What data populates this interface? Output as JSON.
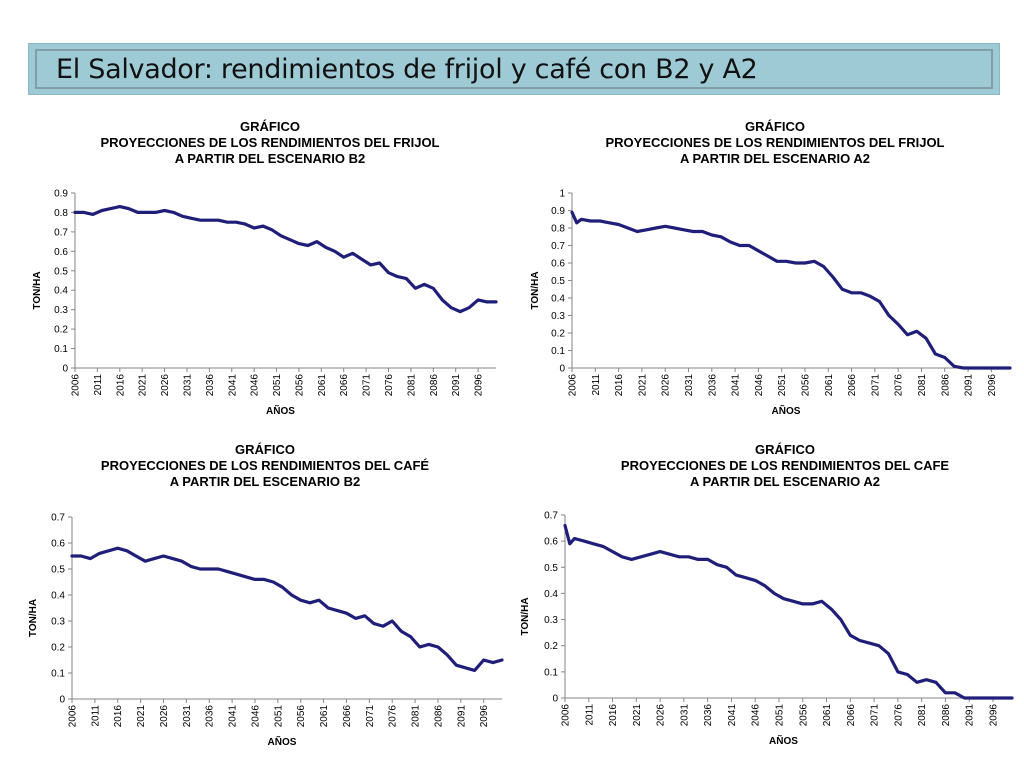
{
  "header": {
    "title": "El Salvador: rendimientos de frijol y café con B2 y A2",
    "band_color": "#9ecad6"
  },
  "series_color": "#1f1f7a",
  "chart_data": [
    {
      "type": "line",
      "title": [
        "GRÁFICO",
        "PROYECCIONES DE LOS RENDIMIENTOS DEL FRIJOL",
        "A PARTIR DEL ESCENARIO B2"
      ],
      "xlabel": "AÑOS",
      "ylabel": "TON/HA",
      "ylim": [
        0,
        0.9
      ],
      "yticks": [
        "0",
        "0.1",
        "0.2",
        "0.3",
        "0.4",
        "0.5",
        "0.6",
        "0.7",
        "0.8",
        "0.9"
      ],
      "xlim": [
        2006,
        2100
      ],
      "xticks": [
        "2006",
        "2011",
        "2016",
        "2021",
        "2026",
        "2031",
        "2036",
        "2041",
        "2046",
        "2051",
        "2056",
        "2061",
        "2066",
        "2071",
        "2076",
        "2081",
        "2086",
        "2091",
        "2096"
      ],
      "x": [
        2006,
        2008,
        2010,
        2012,
        2014,
        2016,
        2018,
        2020,
        2022,
        2024,
        2026,
        2028,
        2030,
        2032,
        2034,
        2036,
        2038,
        2040,
        2042,
        2044,
        2046,
        2048,
        2050,
        2052,
        2054,
        2056,
        2058,
        2060,
        2062,
        2064,
        2066,
        2068,
        2070,
        2072,
        2074,
        2076,
        2078,
        2080,
        2082,
        2084,
        2086,
        2088,
        2090,
        2092,
        2094,
        2096,
        2098,
        2100
      ],
      "y": [
        0.8,
        0.8,
        0.79,
        0.81,
        0.82,
        0.83,
        0.82,
        0.8,
        0.8,
        0.8,
        0.81,
        0.8,
        0.78,
        0.77,
        0.76,
        0.76,
        0.76,
        0.75,
        0.75,
        0.74,
        0.72,
        0.73,
        0.71,
        0.68,
        0.66,
        0.64,
        0.63,
        0.65,
        0.62,
        0.6,
        0.57,
        0.59,
        0.56,
        0.53,
        0.54,
        0.49,
        0.47,
        0.46,
        0.41,
        0.43,
        0.41,
        0.35,
        0.31,
        0.29,
        0.31,
        0.35,
        0.34,
        0.34
      ]
    },
    {
      "type": "line",
      "title": [
        "GRÁFICO",
        "PROYECCIONES DE LOS RENDIMIENTOS DEL FRIJOL",
        "A PARTIR DEL ESCENARIO A2"
      ],
      "xlabel": "AÑOS",
      "ylabel": "TON/HA",
      "ylim": [
        0,
        1
      ],
      "yticks": [
        "0",
        "0.1",
        "0.2",
        "0.3",
        "0.4",
        "0.5",
        "0.6",
        "0.7",
        "0.8",
        "0.9",
        "1"
      ],
      "xlim": [
        2006,
        2100
      ],
      "xticks": [
        "2006",
        "2011",
        "2016",
        "2021",
        "2026",
        "2031",
        "2036",
        "2041",
        "2046",
        "2051",
        "2056",
        "2061",
        "2066",
        "2071",
        "2076",
        "2081",
        "2086",
        "2091",
        "2096"
      ],
      "x": [
        2006,
        2007,
        2008,
        2010,
        2012,
        2014,
        2016,
        2018,
        2020,
        2022,
        2024,
        2026,
        2028,
        2030,
        2032,
        2034,
        2036,
        2038,
        2040,
        2042,
        2044,
        2046,
        2048,
        2050,
        2052,
        2054,
        2056,
        2058,
        2060,
        2062,
        2064,
        2066,
        2068,
        2070,
        2072,
        2074,
        2076,
        2078,
        2080,
        2082,
        2084,
        2086,
        2088,
        2090,
        2092,
        2094,
        2096,
        2098,
        2100
      ],
      "y": [
        0.89,
        0.83,
        0.85,
        0.84,
        0.84,
        0.83,
        0.82,
        0.8,
        0.78,
        0.79,
        0.8,
        0.81,
        0.8,
        0.79,
        0.78,
        0.78,
        0.76,
        0.75,
        0.72,
        0.7,
        0.7,
        0.67,
        0.64,
        0.61,
        0.61,
        0.6,
        0.6,
        0.61,
        0.58,
        0.52,
        0.45,
        0.43,
        0.43,
        0.41,
        0.38,
        0.3,
        0.25,
        0.19,
        0.21,
        0.17,
        0.08,
        0.06,
        0.01,
        0.0,
        0.0,
        0.0,
        0.0,
        0.0,
        0.0
      ]
    },
    {
      "type": "line",
      "title": [
        "GRÁFICO",
        "PROYECCIONES DE LOS RENDIMIENTOS DEL CAFÉ",
        "A PARTIR DEL ESCENARIO B2"
      ],
      "xlabel": "AÑOS",
      "ylabel": "TON/HA",
      "ylim": [
        0,
        0.7
      ],
      "yticks": [
        "0",
        "0.1",
        "0.2",
        "0.3",
        "0.4",
        "0.5",
        "0.6",
        "0.7"
      ],
      "xlim": [
        2006,
        2100
      ],
      "xticks": [
        "2006",
        "2011",
        "2016",
        "2021",
        "2026",
        "2031",
        "2036",
        "2041",
        "2046",
        "2051",
        "2056",
        "2061",
        "2066",
        "2071",
        "2076",
        "2081",
        "2086",
        "2091",
        "2096"
      ],
      "x": [
        2006,
        2008,
        2010,
        2012,
        2014,
        2016,
        2018,
        2020,
        2022,
        2024,
        2026,
        2028,
        2030,
        2032,
        2034,
        2036,
        2038,
        2040,
        2042,
        2044,
        2046,
        2048,
        2050,
        2052,
        2054,
        2056,
        2058,
        2060,
        2062,
        2064,
        2066,
        2068,
        2070,
        2072,
        2074,
        2076,
        2078,
        2080,
        2082,
        2084,
        2086,
        2088,
        2090,
        2092,
        2094,
        2096,
        2098,
        2100
      ],
      "y": [
        0.55,
        0.55,
        0.54,
        0.56,
        0.57,
        0.58,
        0.57,
        0.55,
        0.53,
        0.54,
        0.55,
        0.54,
        0.53,
        0.51,
        0.5,
        0.5,
        0.5,
        0.49,
        0.48,
        0.47,
        0.46,
        0.46,
        0.45,
        0.43,
        0.4,
        0.38,
        0.37,
        0.38,
        0.35,
        0.34,
        0.33,
        0.31,
        0.32,
        0.29,
        0.28,
        0.3,
        0.26,
        0.24,
        0.2,
        0.21,
        0.2,
        0.17,
        0.13,
        0.12,
        0.11,
        0.15,
        0.14,
        0.15
      ]
    },
    {
      "type": "line",
      "title": [
        "GRÁFICO",
        "PROYECCIONES DE LOS RENDIMIENTOS DEL CAFE",
        "A PARTIR DEL ESCENARIO A2"
      ],
      "xlabel": "AÑOS",
      "ylabel": "TON/HA",
      "ylim": [
        0,
        0.7
      ],
      "yticks": [
        "0",
        "0.1",
        "0.2",
        "0.3",
        "0.4",
        "0.5",
        "0.6",
        "0.7"
      ],
      "xlim": [
        2006,
        2100
      ],
      "xticks": [
        "2006",
        "2011",
        "2016",
        "2021",
        "2026",
        "2031",
        "2036",
        "2041",
        "2046",
        "2051",
        "2056",
        "2061",
        "2066",
        "2071",
        "2076",
        "2081",
        "2086",
        "2091",
        "2096"
      ],
      "x": [
        2006,
        2007,
        2008,
        2010,
        2012,
        2014,
        2016,
        2018,
        2020,
        2022,
        2024,
        2026,
        2028,
        2030,
        2032,
        2034,
        2036,
        2038,
        2040,
        2042,
        2044,
        2046,
        2048,
        2050,
        2052,
        2054,
        2056,
        2058,
        2060,
        2062,
        2064,
        2066,
        2068,
        2070,
        2072,
        2074,
        2076,
        2078,
        2080,
        2082,
        2084,
        2086,
        2088,
        2090,
        2092,
        2094,
        2096,
        2098,
        2100
      ],
      "y": [
        0.66,
        0.59,
        0.61,
        0.6,
        0.59,
        0.58,
        0.56,
        0.54,
        0.53,
        0.54,
        0.55,
        0.56,
        0.55,
        0.54,
        0.54,
        0.53,
        0.53,
        0.51,
        0.5,
        0.47,
        0.46,
        0.45,
        0.43,
        0.4,
        0.38,
        0.37,
        0.36,
        0.36,
        0.37,
        0.34,
        0.3,
        0.24,
        0.22,
        0.21,
        0.2,
        0.17,
        0.1,
        0.09,
        0.06,
        0.07,
        0.06,
        0.02,
        0.02,
        0.0,
        0.0,
        0.0,
        0.0,
        0.0,
        0.0
      ]
    }
  ]
}
